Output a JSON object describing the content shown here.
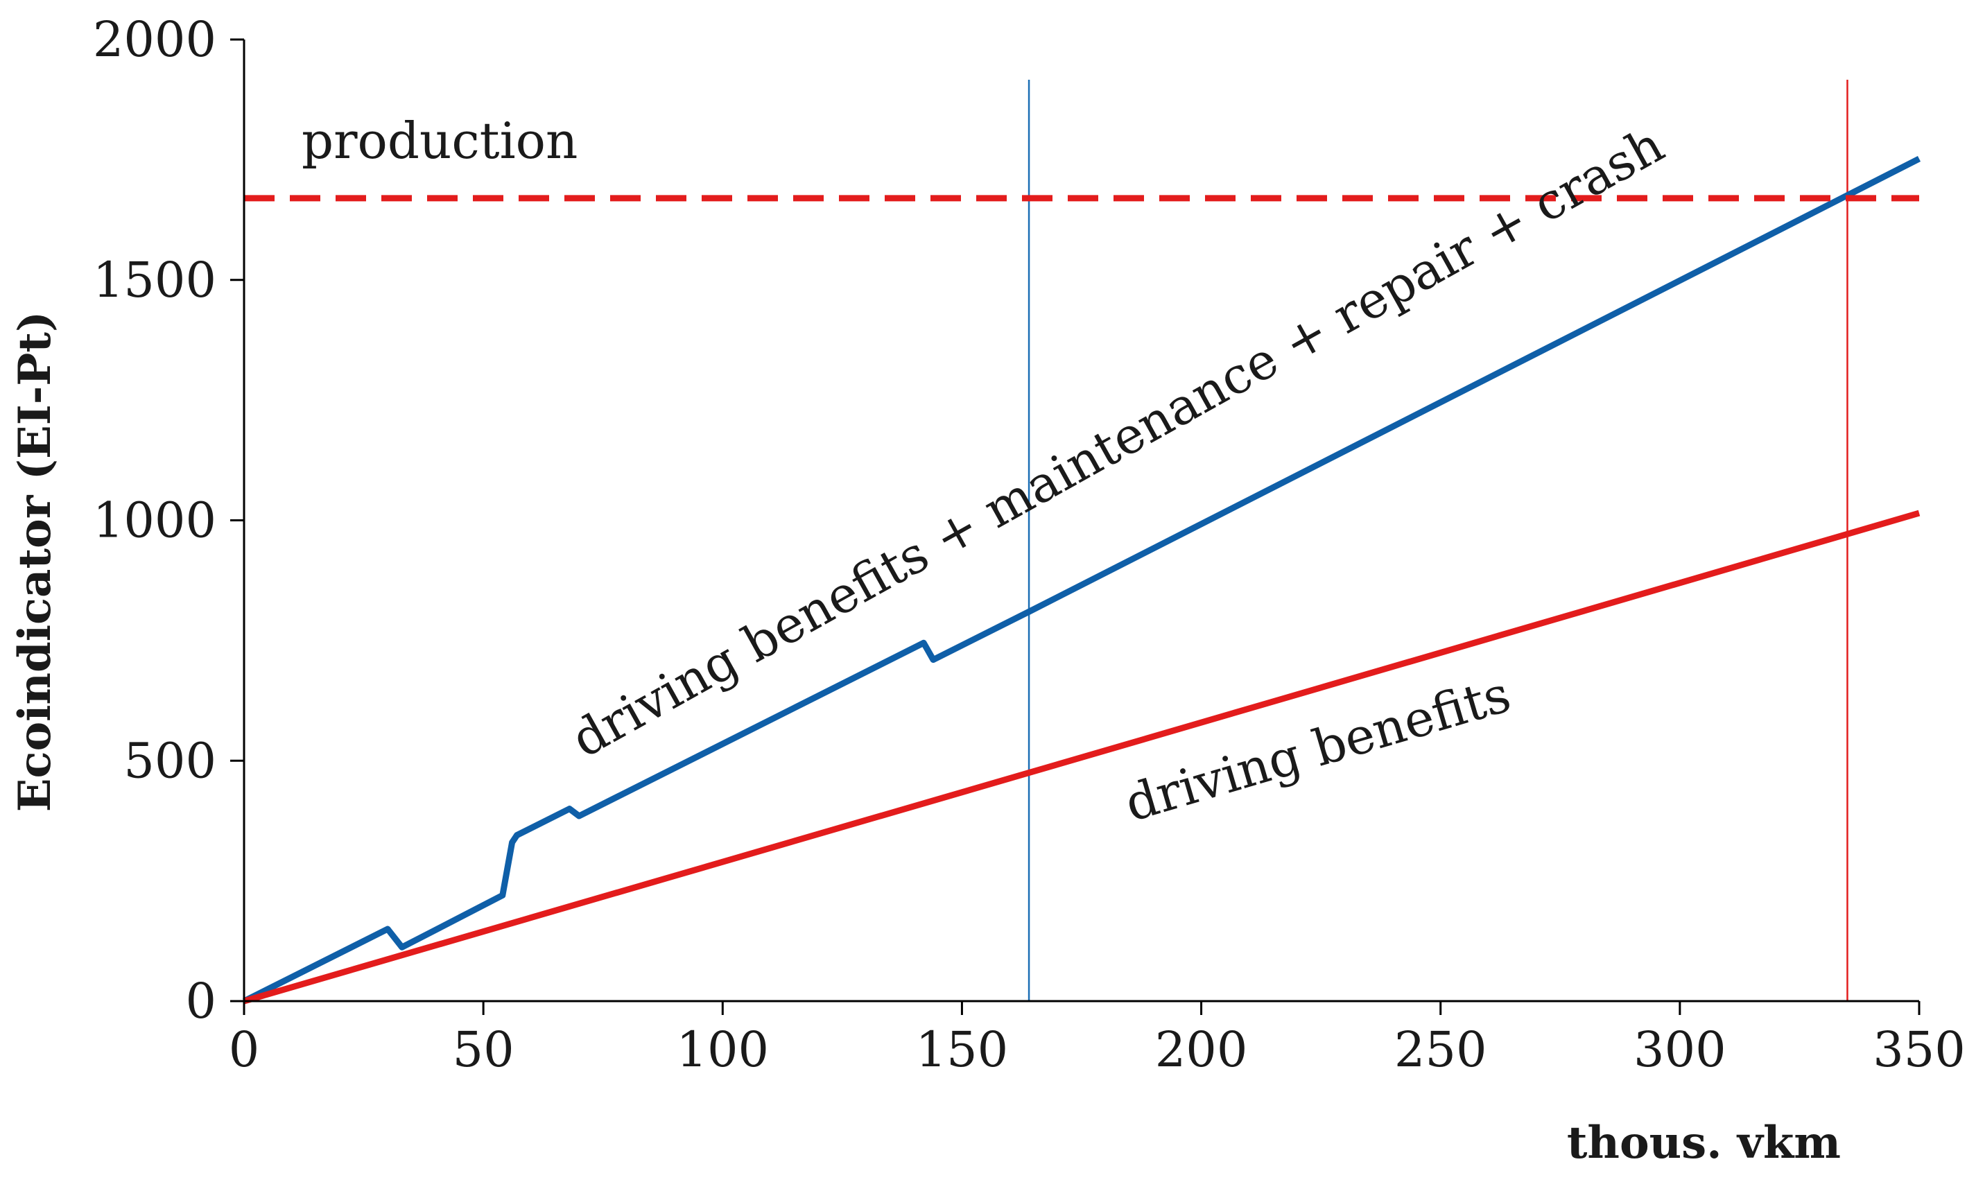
{
  "chart_data": {
    "type": "line",
    "title": "",
    "xlabel": "thous. vkm",
    "ylabel": "Ecoindicator (EI-Pt)",
    "xlim": [
      0,
      350
    ],
    "ylim": [
      0,
      2000
    ],
    "x_ticks": [
      0,
      50,
      100,
      150,
      200,
      250,
      300,
      350
    ],
    "y_ticks": [
      0,
      500,
      1000,
      1500,
      2000
    ],
    "grid": false,
    "legend": "none",
    "series": [
      {
        "name": "driving benefits + maintenance + repair + crash",
        "color": "#0f5fa8",
        "style": "solid",
        "x": [
          0,
          30,
          33,
          54,
          56,
          57,
          68,
          70,
          142,
          144,
          164,
          350
        ],
        "y": [
          0,
          150,
          112,
          220,
          330,
          345,
          400,
          385,
          745,
          710,
          810,
          1752
        ]
      },
      {
        "name": "driving benefits",
        "color": "#e31c1c",
        "style": "solid",
        "x": [
          0,
          164,
          350
        ],
        "y": [
          0,
          475,
          1015
        ]
      },
      {
        "name": "production",
        "color": "#e31c1c",
        "style": "dashed",
        "x": [
          0,
          350
        ],
        "y": [
          1670,
          1670
        ]
      }
    ],
    "vertical_markers": [
      {
        "x": 164,
        "color": "#1c6fb5"
      },
      {
        "x": 335,
        "color": "#e31c1c"
      }
    ],
    "annotations": [
      {
        "text": "production"
      },
      {
        "text": "driving benefits + maintenance + repair + crash"
      },
      {
        "text": "driving benefits"
      }
    ]
  }
}
